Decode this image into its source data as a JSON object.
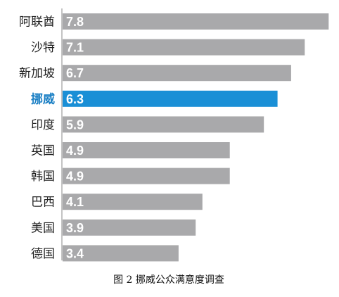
{
  "chart_data": {
    "type": "bar",
    "orientation": "horizontal",
    "categories": [
      "阿联酋",
      "沙特",
      "新加坡",
      "挪威",
      "印度",
      "英国",
      "韩国",
      "巴西",
      "美国",
      "德国"
    ],
    "values": [
      7.8,
      7.1,
      6.7,
      6.3,
      5.9,
      4.9,
      4.9,
      4.1,
      3.9,
      3.4
    ],
    "value_labels": [
      "7.8",
      "7.1",
      "6.7",
      "6.3",
      "5.9",
      "4.9",
      "4.9",
      "4.1",
      "3.9",
      "3.4"
    ],
    "highlight_category": "挪威",
    "title": "",
    "xlabel": "",
    "ylabel": "",
    "xlim": [
      0,
      8.0
    ],
    "grid": false,
    "legend": "none"
  },
  "caption": "图 2  挪威公众满意度调查",
  "colors": {
    "bar": "#a9a9ab",
    "bar_highlight": "#1a8fd6",
    "label": "#222222",
    "label_highlight": "#1a7fc4",
    "value_text": "#ffffff",
    "axis": "#888888"
  }
}
